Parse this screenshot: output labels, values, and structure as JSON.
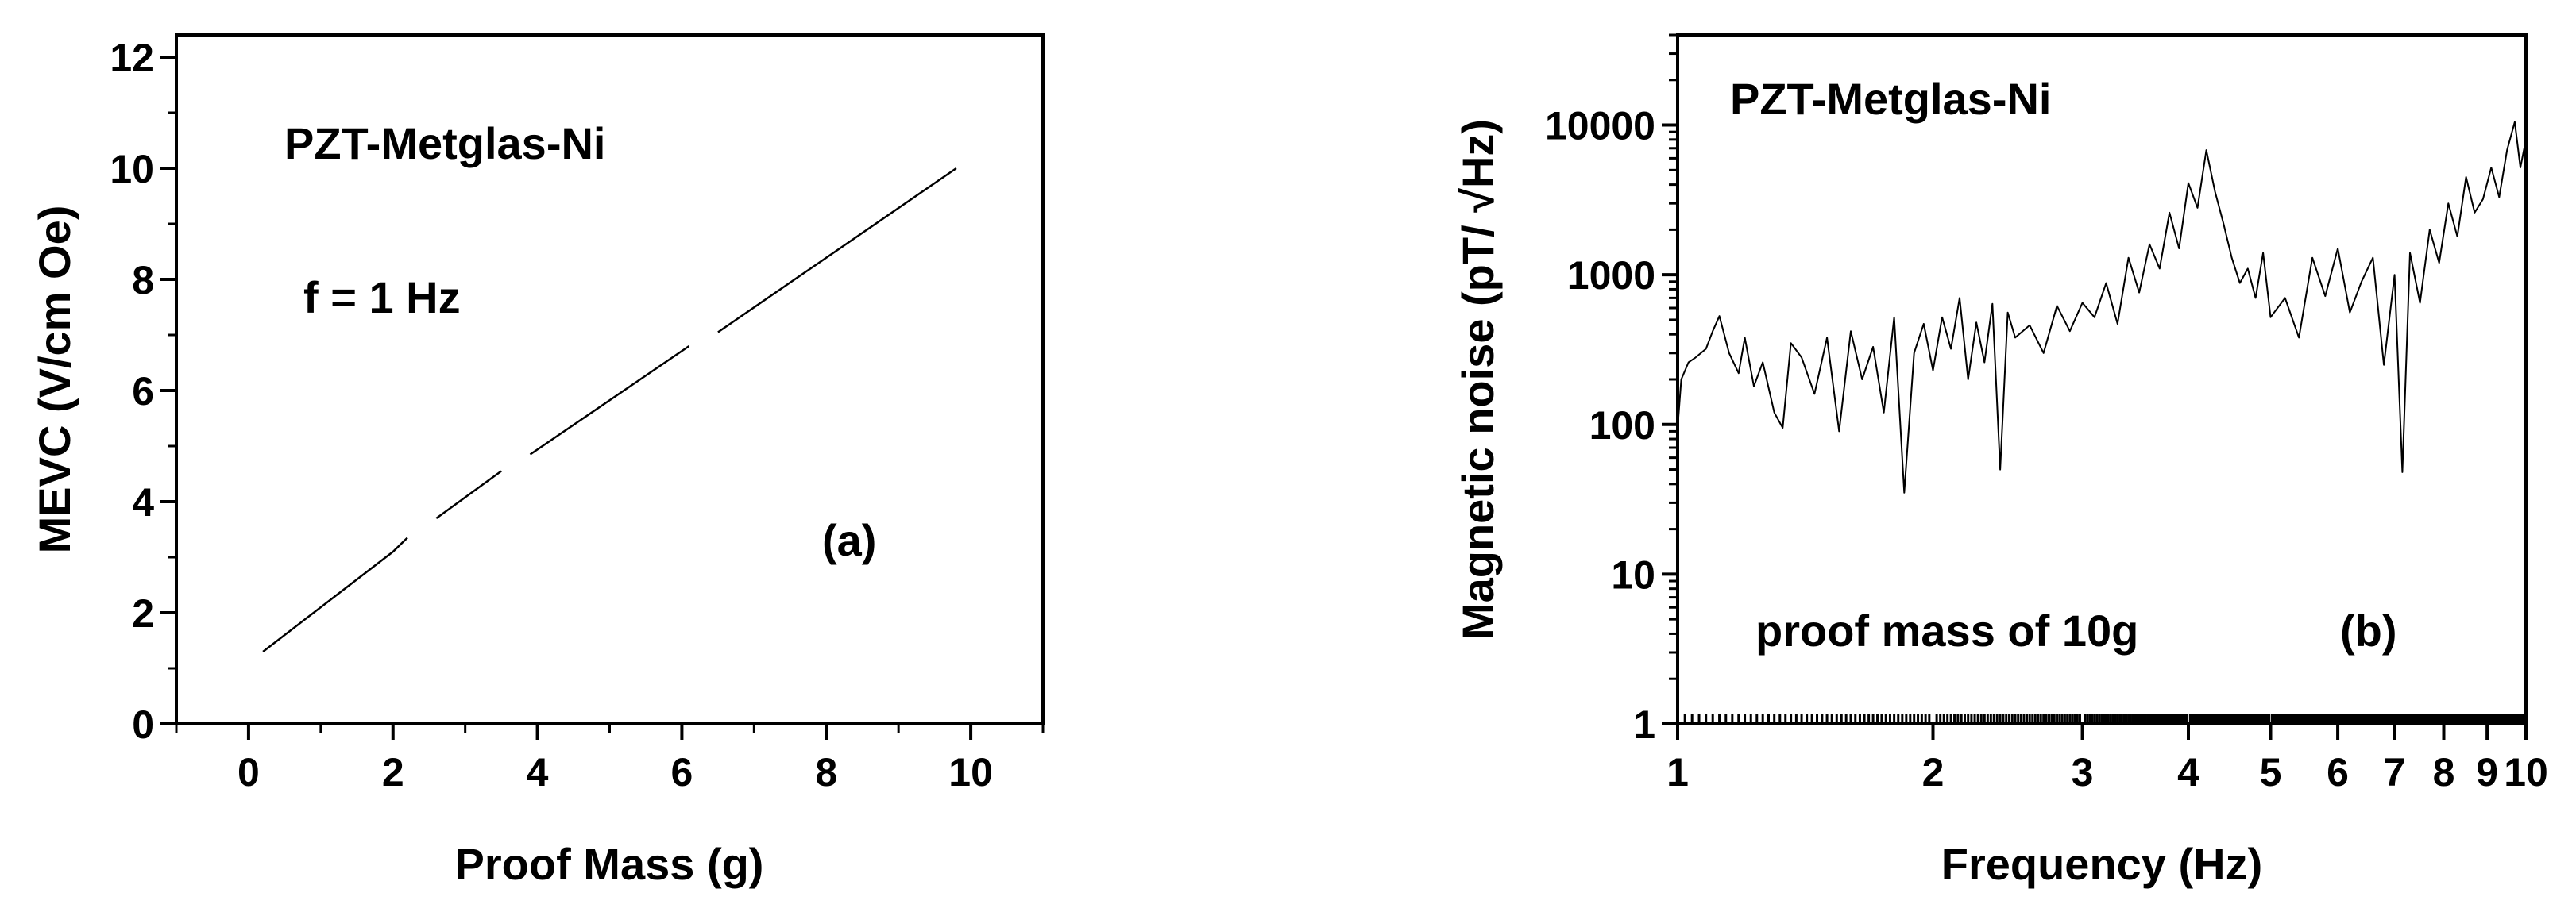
{
  "colors": {
    "axis": "#000000",
    "line": "#000000",
    "background": "#ffffff"
  },
  "chart_data": [
    {
      "type": "line",
      "panel": "(a)",
      "title": "",
      "xlabel": "Proof Mass (g)",
      "ylabel": "MEVC (V/cm Oe)",
      "xlim": [
        -1,
        11
      ],
      "ylim": [
        0,
        12.4
      ],
      "xticks": [
        0,
        2,
        4,
        6,
        8,
        10
      ],
      "yticks": [
        0,
        2,
        4,
        6,
        8,
        10,
        12
      ],
      "grid": false,
      "annotations": [
        "PZT-Metglas-Ni",
        "f = 1 Hz",
        "(a)"
      ],
      "series": [
        {
          "x": [
            0.2,
            2.0,
            2.2,
            2.6,
            3.5,
            3.9,
            6.1,
            6.5,
            9.8
          ],
          "y": [
            1.3,
            3.1,
            3.35,
            3.7,
            4.55,
            4.85,
            6.8,
            7.05,
            10.0
          ],
          "segments": [
            [
              0,
              3
            ],
            [
              3,
              5
            ],
            [
              5,
              7
            ],
            [
              7,
              9
            ]
          ]
        }
      ]
    },
    {
      "type": "line",
      "panel": "(b)",
      "title": "",
      "xlabel": "Frequency (Hz)",
      "ylabel": "Magnetic noise (pT/ √Hz)",
      "xscale": "log",
      "yscale": "log",
      "xlim": [
        1,
        10
      ],
      "ylim": [
        1,
        40000
      ],
      "xticks": [
        1,
        2,
        3,
        4,
        5,
        6,
        7,
        8,
        9,
        10
      ],
      "xticklabels": [
        "1",
        "2",
        "3",
        "4",
        "5",
        "6",
        "7",
        "8",
        "9",
        "10"
      ],
      "yticks": [
        1,
        10,
        100,
        1000,
        10000
      ],
      "yticklabels": [
        "1",
        "10",
        "100",
        "1000",
        "10000"
      ],
      "grid": false,
      "annotations": [
        "PZT-Metglas-Ni",
        "proof mass of 10g",
        "(b)"
      ],
      "series": [
        {
          "x": [
            1.0,
            1.01,
            1.03,
            1.05,
            1.08,
            1.1,
            1.12,
            1.15,
            1.18,
            1.2,
            1.23,
            1.26,
            1.3,
            1.33,
            1.36,
            1.4,
            1.45,
            1.5,
            1.55,
            1.6,
            1.65,
            1.7,
            1.75,
            1.8,
            1.85,
            1.9,
            1.95,
            2.0,
            2.05,
            2.1,
            2.15,
            2.2,
            2.25,
            2.3,
            2.35,
            2.4,
            2.45,
            2.5,
            2.6,
            2.7,
            2.8,
            2.9,
            3.0,
            3.1,
            3.2,
            3.3,
            3.4,
            3.5,
            3.6,
            3.7,
            3.8,
            3.9,
            4.0,
            4.1,
            4.2,
            4.3,
            4.4,
            4.5,
            4.6,
            4.7,
            4.8,
            4.9,
            5.0,
            5.2,
            5.4,
            5.6,
            5.8,
            6.0,
            6.2,
            6.4,
            6.6,
            6.8,
            7.0,
            7.15,
            7.3,
            7.5,
            7.7,
            7.9,
            8.1,
            8.3,
            8.5,
            8.7,
            8.9,
            9.1,
            9.3,
            9.5,
            9.7,
            9.85,
            10.0
          ],
          "y": [
            95,
            200,
            260,
            280,
            320,
            420,
            530,
            300,
            220,
            380,
            180,
            260,
            120,
            95,
            350,
            280,
            160,
            380,
            90,
            420,
            200,
            330,
            120,
            520,
            35,
            300,
            470,
            230,
            520,
            320,
            700,
            200,
            480,
            260,
            640,
            50,
            560,
            380,
            460,
            300,
            620,
            420,
            650,
            520,
            880,
            470,
            1300,
            760,
            1600,
            1100,
            2600,
            1500,
            4100,
            2800,
            6800,
            3600,
            2200,
            1300,
            880,
            1100,
            700,
            1400,
            520,
            700,
            380,
            1300,
            720,
            1500,
            560,
            900,
            1300,
            250,
            1000,
            48,
            1400,
            650,
            2000,
            1200,
            3000,
            1800,
            4500,
            2600,
            3200,
            5200,
            3300,
            6800,
            10500,
            5200,
            8000
          ]
        }
      ]
    }
  ]
}
